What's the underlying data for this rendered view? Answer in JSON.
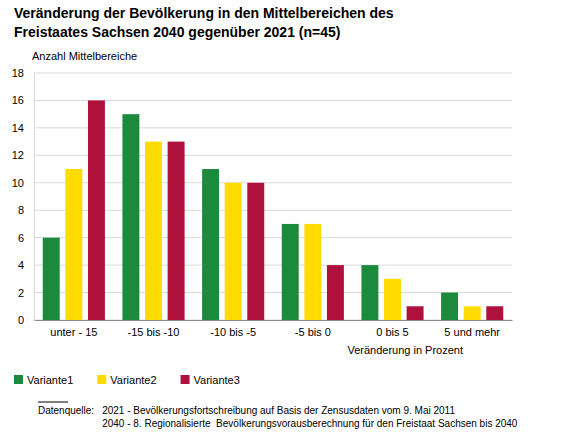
{
  "chart_data": {
    "type": "bar",
    "title": "Veränderung der Bevölkerung in den Mittelbereichen des Freistaates Sachsen 2040 gegenüber 2021 (n=45)",
    "y_label": "Anzahl Mittelbereiche",
    "x_label": "Veränderung in Prozent",
    "categories": [
      "unter - 15",
      "-15 bis -10",
      "-10 bis -5",
      "-5 bis 0",
      "0 bis 5",
      "5 und mehr"
    ],
    "series": [
      {
        "name": "Variante1",
        "color": "#1b8a3c",
        "values": [
          6,
          15,
          11,
          7,
          4,
          2
        ]
      },
      {
        "name": "Variante2",
        "color": "#ffdc00",
        "values": [
          11,
          13,
          10,
          7,
          3,
          1
        ]
      },
      {
        "name": "Variante3",
        "color": "#b0103c",
        "values": [
          16,
          13,
          10,
          4,
          1,
          1
        ]
      }
    ],
    "ylim": [
      0,
      18
    ],
    "yticks": [
      0,
      2,
      4,
      6,
      8,
      10,
      12,
      14,
      16,
      18
    ],
    "grid": true,
    "legend": "bottom-left",
    "source_label": "Datenquelle:",
    "source": [
      "2021 - Bevölkerungsfortschreibung auf Basis der Zensusdaten vom 9. Mai 2011",
      "2040 - 8. Regionalisierte  Bevölkerungsvorausberechnung für den Freistaat Sachsen bis 2040"
    ]
  }
}
